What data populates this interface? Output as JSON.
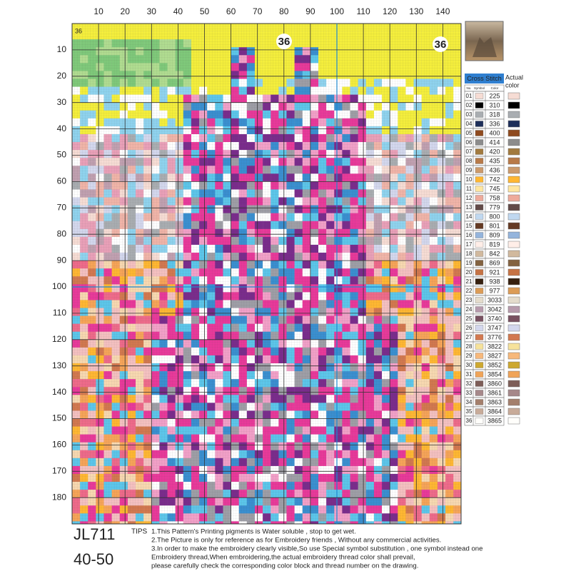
{
  "ruler": {
    "top": [
      10,
      20,
      30,
      40,
      50,
      60,
      70,
      80,
      90,
      100,
      110,
      120,
      130,
      140
    ],
    "left": [
      10,
      20,
      30,
      40,
      50,
      60,
      70,
      80,
      90,
      100,
      110,
      120,
      130,
      140,
      150,
      160,
      170,
      180
    ],
    "highlight": 100,
    "highlight_color": "#1e88d0"
  },
  "badges": [
    "36",
    "36",
    "36"
  ],
  "legend": {
    "title": "Cross Stitch",
    "actual": [
      "Actual",
      "color"
    ],
    "headers": [
      "No.",
      "Symbol",
      "Color"
    ],
    "rows": [
      {
        "no": "01",
        "code": "225",
        "color": "#f6dcd4"
      },
      {
        "no": "02",
        "code": "310",
        "color": "#000000"
      },
      {
        "no": "03",
        "code": "318",
        "color": "#a9adb1"
      },
      {
        "no": "04",
        "code": "336",
        "color": "#1e2f5a"
      },
      {
        "no": "05",
        "code": "400",
        "color": "#8f4a1e"
      },
      {
        "no": "06",
        "code": "414",
        "color": "#8c8c8c"
      },
      {
        "no": "07",
        "code": "420",
        "color": "#a27a3e"
      },
      {
        "no": "08",
        "code": "435",
        "color": "#b87a48"
      },
      {
        "no": "09",
        "code": "436",
        "color": "#cc9a6b"
      },
      {
        "no": "10",
        "code": "742",
        "color": "#ffb732"
      },
      {
        "no": "11",
        "code": "745",
        "color": "#ffe6a0"
      },
      {
        "no": "12",
        "code": "758",
        "color": "#eeaa9b"
      },
      {
        "no": "13",
        "code": "779",
        "color": "#624a48"
      },
      {
        "no": "14",
        "code": "800",
        "color": "#c0d8f0"
      },
      {
        "no": "15",
        "code": "801",
        "color": "#653a23"
      },
      {
        "no": "16",
        "code": "809",
        "color": "#94b4dc"
      },
      {
        "no": "17",
        "code": "819",
        "color": "#ffeee8"
      },
      {
        "no": "18",
        "code": "842",
        "color": "#d1b99e"
      },
      {
        "no": "19",
        "code": "869",
        "color": "#836240"
      },
      {
        "no": "20",
        "code": "921",
        "color": "#c67344"
      },
      {
        "no": "21",
        "code": "938",
        "color": "#36200f"
      },
      {
        "no": "22",
        "code": "977",
        "color": "#dc9c56"
      },
      {
        "no": "23",
        "code": "3033",
        "color": "#e4dccc"
      },
      {
        "no": "24",
        "code": "3042",
        "color": "#b79aac"
      },
      {
        "no": "25",
        "code": "3740",
        "color": "#785060"
      },
      {
        "no": "26",
        "code": "3747",
        "color": "#d3d7ed"
      },
      {
        "no": "27",
        "code": "3776",
        "color": "#d2784f"
      },
      {
        "no": "28",
        "code": "3822",
        "color": "#f6e29b"
      },
      {
        "no": "29",
        "code": "3827",
        "color": "#f7b87b"
      },
      {
        "no": "30",
        "code": "3852",
        "color": "#cda830"
      },
      {
        "no": "31",
        "code": "3854",
        "color": "#f0a458"
      },
      {
        "no": "32",
        "code": "3860",
        "color": "#7d5d57"
      },
      {
        "no": "33",
        "code": "3861",
        "color": "#a6888a"
      },
      {
        "no": "34",
        "code": "3863",
        "color": "#a47f6c"
      },
      {
        "no": "35",
        "code": "3864",
        "color": "#c8ab99"
      },
      {
        "no": "36",
        "code": "3865",
        "color": "#fffefb"
      }
    ]
  },
  "code": "JL711",
  "range": "40-50",
  "tips": {
    "label": "TIPS",
    "lines": [
      "1.This Pattern's Printing pigments is Water soluble , stop to get wet.",
      "2.The Picture is only for reference as for Embroidery friends , Without any commercial activities.",
      "3.In order to make the embroidery clearly visible,So use Special symbol substitution , one symbol instead one",
      "Embroidery thread,When embroidering,the actual embroidery thread color shall prevail,",
      "please carefully check the corresponding color block and thread number on the drawing."
    ]
  }
}
